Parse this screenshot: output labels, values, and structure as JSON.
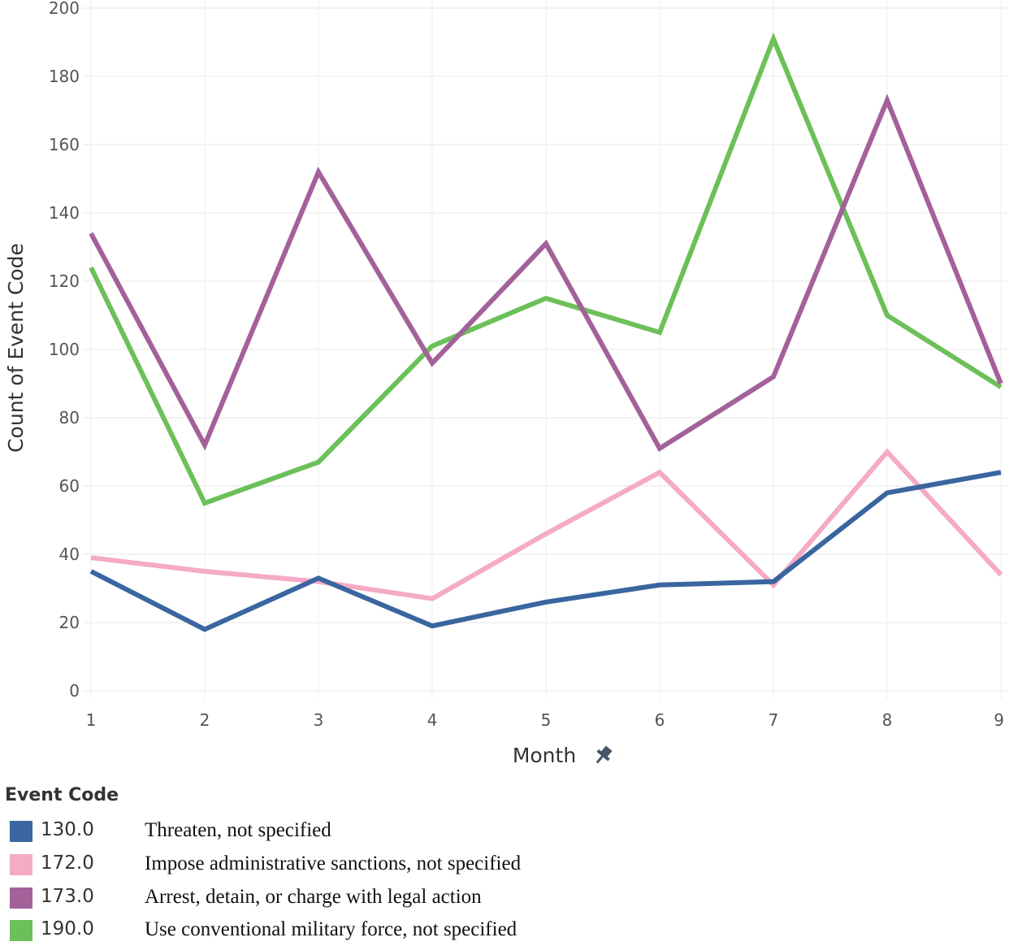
{
  "chart_data": {
    "type": "line",
    "xlabel": "Month",
    "ylabel": "Count of Event Code",
    "x": [
      1,
      2,
      3,
      4,
      5,
      6,
      7,
      8,
      9
    ],
    "ylim": [
      0,
      200
    ],
    "yticks": [
      0,
      20,
      40,
      60,
      80,
      100,
      120,
      140,
      160,
      180,
      200
    ],
    "grid": true,
    "legend_title": "Event Code",
    "legend_position": "bottom-left",
    "series": [
      {
        "name": "130.0",
        "description": "Threaten, not specified",
        "color": "#3a66a0",
        "values": [
          35,
          18,
          33,
          19,
          26,
          31,
          32,
          58,
          64
        ]
      },
      {
        "name": "172.0",
        "description": "Impose administrative sanctions, not specified",
        "color": "#f5aac6",
        "values": [
          39,
          35,
          32,
          27,
          46,
          64,
          31,
          70,
          34
        ]
      },
      {
        "name": "173.0",
        "description": "Arrest, detain, or charge with legal action",
        "color": "#a3619a",
        "values": [
          134,
          72,
          152,
          96,
          131,
          71,
          92,
          173,
          90
        ]
      },
      {
        "name": "190.0",
        "description": "Use conventional military force, not specified",
        "color": "#6cc05a",
        "values": [
          124,
          55,
          67,
          101,
          115,
          105,
          191,
          110,
          89
        ]
      }
    ]
  }
}
